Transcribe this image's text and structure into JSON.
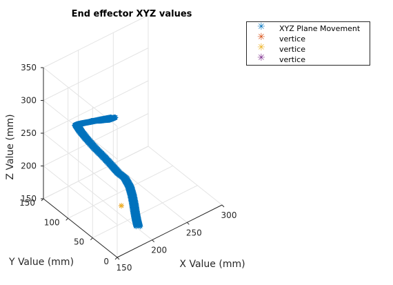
{
  "chart_data": {
    "type": "scatter",
    "title": "End effector XYZ values",
    "xlabel": "X Value (mm)",
    "ylabel": "Y Value (mm)",
    "zlabel": "Z Value (mm)",
    "xlim": [
      150,
      300
    ],
    "ylim": [
      0,
      150
    ],
    "zlim": [
      150,
      350
    ],
    "xticks": [
      "150",
      "200",
      "250",
      "300"
    ],
    "yticks": [
      "0",
      "50",
      "100",
      "150"
    ],
    "zticks": [
      "150",
      "200",
      "250",
      "300",
      "350"
    ],
    "grid": true,
    "legend_position": "top-right outside",
    "colors": {
      "movement": "#0072BD",
      "vertice1": "#D95319",
      "vertice2": "#EDB120",
      "vertice3": "#7E2F8E"
    },
    "series": [
      {
        "name": "XYZ Plane Movement",
        "marker": "*",
        "color": "#0072BD",
        "points": [
          [
            200,
            120,
            260
          ],
          [
            203,
            114,
            262
          ],
          [
            206,
            108,
            265
          ],
          [
            208,
            102,
            268
          ],
          [
            210,
            97,
            272
          ],
          [
            210,
            93,
            276
          ],
          [
            207,
            92,
            278
          ],
          [
            203,
            94,
            278
          ],
          [
            198,
            99,
            276
          ],
          [
            193,
            105,
            273
          ],
          [
            188,
            111,
            270
          ],
          [
            184,
            117,
            267
          ],
          [
            181,
            122,
            264
          ],
          [
            180,
            125,
            261
          ],
          [
            181,
            118,
            255
          ],
          [
            183,
            108,
            248
          ],
          [
            186,
            96,
            240
          ],
          [
            190,
            85,
            232
          ],
          [
            194,
            74,
            223
          ],
          [
            198,
            66,
            214
          ],
          [
            201,
            57,
            210
          ],
          [
            203,
            50,
            200
          ],
          [
            203,
            45,
            190
          ],
          [
            202,
            40,
            180
          ],
          [
            201,
            36,
            170
          ],
          [
            201,
            33,
            160
          ],
          [
            202,
            31,
            150
          ]
        ]
      },
      {
        "name": "vertice",
        "marker": "*",
        "color": "#D95319",
        "points": [
          [
            189,
            47,
            180
          ]
        ]
      },
      {
        "name": "vertice",
        "marker": "*",
        "color": "#EDB120",
        "points": [
          [
            189,
            47,
            180
          ]
        ]
      },
      {
        "name": "vertice",
        "marker": "*",
        "color": "#7E2F8E",
        "points": []
      }
    ]
  }
}
